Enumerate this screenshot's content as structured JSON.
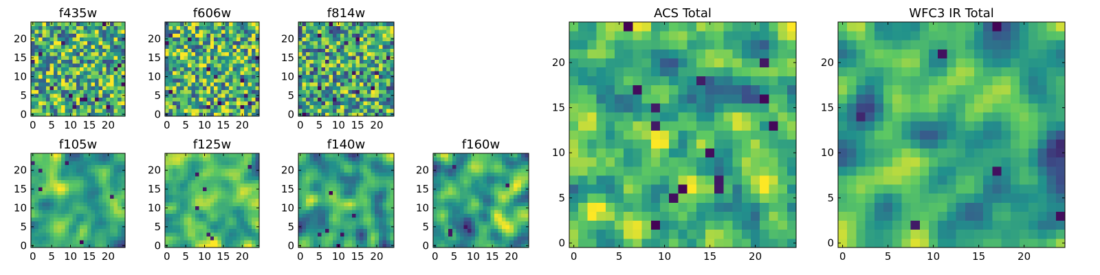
{
  "chart_data": {
    "type": "heatmap",
    "colormap": [
      "#440154",
      "#3b528b",
      "#21918c",
      "#5ec962",
      "#fde725"
    ],
    "grid": false,
    "panels": [
      {
        "id": "f435w",
        "title": "f435w",
        "nx": 25,
        "ny": 25,
        "xticks": [
          0,
          5,
          10,
          15,
          20
        ],
        "yticks": [
          0,
          5,
          10,
          15,
          20
        ],
        "texture": "fine",
        "seed": 11,
        "meanShift": 0.05
      },
      {
        "id": "f606w",
        "title": "f606w",
        "nx": 25,
        "ny": 25,
        "xticks": [
          0,
          5,
          10,
          15,
          20
        ],
        "yticks": [
          0,
          5,
          10,
          15,
          20
        ],
        "texture": "fine",
        "seed": 23,
        "meanShift": 0.05
      },
      {
        "id": "f814w",
        "title": "f814w",
        "nx": 25,
        "ny": 25,
        "xticks": [
          0,
          5,
          10,
          15,
          20
        ],
        "yticks": [
          0,
          5,
          10,
          15,
          20
        ],
        "texture": "fine",
        "seed": 37,
        "meanShift": 0.0
      },
      {
        "id": "f105w",
        "title": "f105w",
        "nx": 25,
        "ny": 25,
        "xticks": [
          0,
          5,
          10,
          15,
          20
        ],
        "yticks": [
          0,
          5,
          10,
          15,
          20
        ],
        "texture": "smooth",
        "seed": 41,
        "meanShift": 0.0
      },
      {
        "id": "f125w",
        "title": "f125w",
        "nx": 25,
        "ny": 25,
        "xticks": [
          0,
          5,
          10,
          15,
          20
        ],
        "yticks": [
          0,
          5,
          10,
          15,
          20
        ],
        "texture": "smooth",
        "seed": 53,
        "meanShift": 0.08
      },
      {
        "id": "f140w",
        "title": "f140w",
        "nx": 25,
        "ny": 25,
        "xticks": [
          0,
          5,
          10,
          15,
          20
        ],
        "yticks": [
          0,
          5,
          10,
          15,
          20
        ],
        "texture": "smooth",
        "seed": 67,
        "meanShift": -0.02
      },
      {
        "id": "f160w",
        "title": "f160w",
        "nx": 25,
        "ny": 25,
        "xticks": [
          0,
          5,
          10,
          15,
          20
        ],
        "yticks": [
          0,
          5,
          10,
          15,
          20
        ],
        "texture": "smooth",
        "seed": 79,
        "meanShift": 0.0
      },
      {
        "id": "acs_total",
        "title": "ACS Total",
        "nx": 25,
        "ny": 25,
        "xticks": [
          0,
          5,
          10,
          15,
          20
        ],
        "yticks": [
          0,
          5,
          10,
          15,
          20
        ],
        "texture": "blocky",
        "seed": 97,
        "meanShift": 0.06
      },
      {
        "id": "wfc3_ir_total",
        "title": "WFC3 IR Total",
        "nx": 25,
        "ny": 25,
        "xticks": [
          0,
          5,
          10,
          15,
          20
        ],
        "yticks": [
          0,
          5,
          10,
          15,
          20
        ],
        "texture": "smooth",
        "seed": 113,
        "meanShift": -0.05
      }
    ]
  }
}
